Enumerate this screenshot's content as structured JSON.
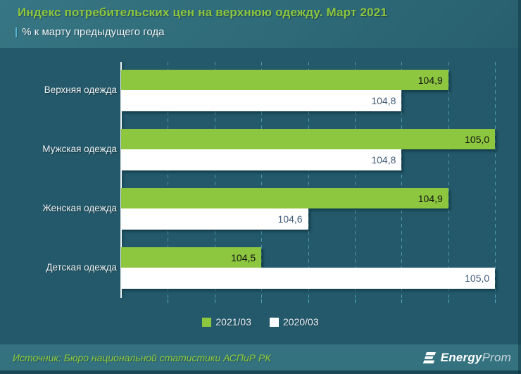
{
  "header": {
    "title": "Индекс потребительских цен на верхнюю одежду. Март 2021",
    "subtitle_pipe": "|",
    "subtitle": "% к марту предыдущего года"
  },
  "chart_data": {
    "type": "bar",
    "orientation": "horizontal",
    "title": "Индекс потребительских цен на верхнюю одежду. Март 2021",
    "subtitle": "% к марту предыдущего года",
    "categories": [
      "Верхняя одежда",
      "Мужская одежда",
      "Женская одежда",
      "Детская одежда"
    ],
    "series": [
      {
        "name": "2021/03",
        "color": "#8dc63f",
        "values": [
          104.9,
          105.0,
          104.9,
          104.5
        ],
        "labels": [
          "104,9",
          "105,0",
          "104,9",
          "104,5"
        ]
      },
      {
        "name": "2020/03",
        "color": "#ffffff",
        "values": [
          104.8,
          104.8,
          104.6,
          105.0
        ],
        "labels": [
          "104,8",
          "104,8",
          "104,6",
          "105,0"
        ]
      }
    ],
    "xlim": [
      104.2,
      105.0
    ],
    "gridline_step": 0.1,
    "grid": true,
    "axis_tick_labels_visible": false,
    "legend_position": "bottom"
  },
  "legend": {
    "items": [
      {
        "label": "2021/03",
        "color": "#8dc63f"
      },
      {
        "label": "2020/03",
        "color": "#ffffff"
      }
    ]
  },
  "footer": {
    "source": "Источник: Бюро национальной статистики АСПиР РК",
    "logo_energy": "Energy",
    "logo_prom": "Prom"
  },
  "colors": {
    "accent_green": "#8dc63f",
    "bar_white": "#ffffff",
    "background_teal": "#23596a",
    "header_teal": "#2e6a78",
    "footer_teal": "#347280",
    "gridline_blue": "#69b7d0"
  }
}
